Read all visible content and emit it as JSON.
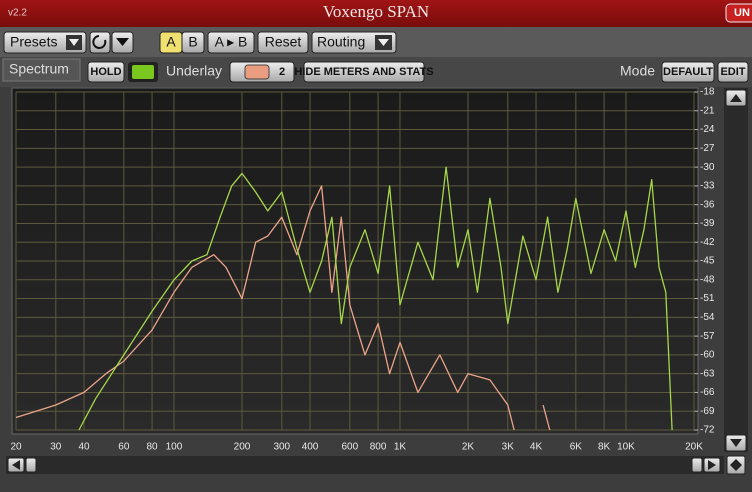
{
  "header": {
    "version": "v2.2",
    "title": "Voxengo SPAN",
    "badge": "UN"
  },
  "toolbar": {
    "presets": "Presets",
    "a": "A",
    "b": "B",
    "a_to_b": "A ▸ B",
    "reset": "Reset",
    "routing": "Routing"
  },
  "controls": {
    "tab": "Spectrum",
    "hold": "HOLD",
    "underlay": "Underlay",
    "underlay_value": 2,
    "hide": "HIDE METERS AND STATS",
    "mode": "Mode",
    "default": "DEFAULT",
    "edit": "EDIT"
  },
  "chart_data": {
    "type": "line",
    "xlog": true,
    "grid": true,
    "xlim": [
      20,
      20000
    ],
    "ylim": [
      -72,
      -18
    ],
    "xticks": [
      20,
      30,
      40,
      60,
      80,
      100,
      200,
      300,
      400,
      600,
      800,
      {
        "value": 1000,
        "label": "1K"
      },
      {
        "value": 2000,
        "label": "2K"
      },
      {
        "value": 3000,
        "label": "3K"
      },
      {
        "value": 4000,
        "label": "4K"
      },
      {
        "value": 6000,
        "label": "6K"
      },
      {
        "value": 8000,
        "label": "8K"
      },
      {
        "value": 10000,
        "label": "10K"
      },
      {
        "value": 20000,
        "label": "20K"
      }
    ],
    "yticks": [
      -18,
      -21,
      -24,
      -27,
      -30,
      -33,
      -36,
      -39,
      -42,
      -45,
      -48,
      -51,
      -54,
      -57,
      -60,
      -63,
      -66,
      -69,
      -72
    ],
    "series": [
      {
        "color": "#a6d64a",
        "x": [
          38,
          45,
          60,
          80,
          100,
          120,
          140,
          160,
          180,
          200,
          230,
          260,
          300,
          350,
          400,
          450,
          500,
          550,
          600,
          700,
          800,
          900,
          1000,
          1200,
          1400,
          1600,
          1800,
          2000,
          2200,
          2500,
          2800,
          3000,
          3500,
          4000,
          4500,
          5000,
          5500,
          6000,
          7000,
          8000,
          9000,
          10000,
          11000,
          12000,
          13000,
          14000,
          15000,
          16000
        ],
        "values": [
          -72,
          -67,
          -60,
          -53,
          -48,
          -45,
          -44,
          -38,
          -33,
          -31,
          -34,
          -37,
          -34,
          -43,
          -50,
          -45,
          -38,
          -55,
          -46,
          -40,
          -47,
          -33,
          -52,
          -42,
          -48,
          -30,
          -46,
          -40,
          -50,
          -35,
          -46,
          -55,
          -41,
          -48,
          -38,
          -50,
          -43,
          -35,
          -47,
          -40,
          -45,
          -37,
          -46,
          -40,
          -32,
          -46,
          -50,
          -72
        ]
      },
      {
        "color": "#eba488",
        "x": [
          20,
          30,
          40,
          50,
          60,
          80,
          100,
          120,
          150,
          170,
          200,
          230,
          260,
          300,
          350,
          400,
          450,
          500,
          550,
          600,
          700,
          800,
          900,
          1000,
          1200,
          1500,
          1800,
          2000,
          2500,
          3000,
          3200,
          4000,
          4300,
          4600
        ],
        "values": [
          -70,
          -68,
          -66,
          -63,
          -61,
          -56,
          -50,
          -46,
          -44,
          -46,
          -51,
          -42,
          -41,
          -38,
          -44,
          -37,
          -33,
          -50,
          -38,
          -52,
          -60,
          -55,
          -63,
          -58,
          -66,
          -60,
          -66,
          -63,
          -64,
          -68,
          -72,
          null,
          -68,
          -72
        ]
      }
    ]
  }
}
